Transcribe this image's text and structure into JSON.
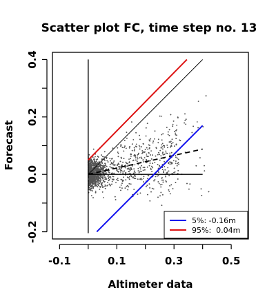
{
  "chart_data": {
    "type": "scatter",
    "title": "Scatter plot FC, time step no. 13",
    "xlabel": "Altimeter data",
    "ylabel": "Forecast",
    "xlim": [
      -0.125,
      0.56
    ],
    "ylim": [
      -0.225,
      0.425
    ],
    "xticks": [
      {
        "value": -0.1,
        "label": "-0.1"
      },
      {
        "value": 0.1,
        "label": "0.1"
      },
      {
        "value": 0.3,
        "label": "0.3"
      },
      {
        "value": 0.5,
        "label": "0.5"
      }
    ],
    "xminor": [
      0.0,
      0.2,
      0.4
    ],
    "yticks": [
      {
        "value": -0.2,
        "label": "-0.2"
      },
      {
        "value": 0.0,
        "label": "0.0"
      },
      {
        "value": 0.2,
        "label": "0.2"
      },
      {
        "value": 0.4,
        "label": "0.4"
      }
    ],
    "yminor": [
      -0.1,
      0.1,
      0.3
    ],
    "grid": false,
    "legend_position": "bottom-right",
    "points": {
      "color": "#555555",
      "approx_count": 2600,
      "x_center": 0.02,
      "y_center": 0.0,
      "note_shape": "dense wedge from x=0, spreading toward upper-right"
    },
    "lines": [
      {
        "id": "reference-vertical",
        "points": [
          [
            0.0,
            -0.205
          ],
          [
            0.0,
            0.4
          ]
        ],
        "color": "#000000",
        "width": 1.4,
        "dash": ""
      },
      {
        "id": "reference-horizontal",
        "points": [
          [
            0.0,
            0.0
          ],
          [
            0.4,
            0.0
          ]
        ],
        "color": "#000000",
        "width": 1.4,
        "dash": ""
      },
      {
        "id": "identity",
        "points": [
          [
            0.0,
            0.0
          ],
          [
            0.4,
            0.4
          ]
        ],
        "color": "#000000",
        "width": 1.0,
        "dash": ""
      },
      {
        "id": "regression",
        "points": [
          [
            0.0,
            0.0
          ],
          [
            0.4,
            0.088
          ]
        ],
        "color": "#000000",
        "width": 1.8,
        "dash": "7,5"
      },
      {
        "id": "p95",
        "points": [
          [
            0.0,
            0.05
          ],
          [
            0.345,
            0.4
          ]
        ],
        "color": "#dd1111",
        "width": 2.0,
        "dash": ""
      },
      {
        "id": "p5",
        "points": [
          [
            0.03,
            -0.2
          ],
          [
            0.4,
            0.17
          ]
        ],
        "color": "#1111ee",
        "width": 2.0,
        "dash": ""
      }
    ],
    "legend": [
      {
        "label": "5%: -0.16m",
        "color": "#1111ee"
      },
      {
        "label": "95%:  0.04m",
        "color": "#dd1111"
      }
    ]
  }
}
